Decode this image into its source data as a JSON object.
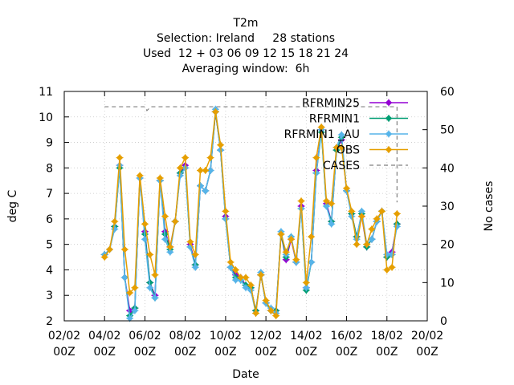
{
  "chart_data": {
    "type": "line",
    "title_lines": [
      "T2m",
      "Selection: Ireland     28 stations",
      "Used  12 + 03 06 09 12 15 18 21 24",
      "Averaging window:  6h"
    ],
    "xlabel": "Date",
    "ylabel": "deg C",
    "y2label": "No cases",
    "xlim": [
      0,
      18
    ],
    "ylim": [
      2,
      11
    ],
    "y2lim": [
      0,
      60
    ],
    "grid": true,
    "legend_position": "top-right",
    "x_ticks": [
      {
        "v": 0,
        "l1": "02/02",
        "l2": "00Z"
      },
      {
        "v": 2,
        "l1": "04/02",
        "l2": "00Z"
      },
      {
        "v": 4,
        "l1": "06/02",
        "l2": "00Z"
      },
      {
        "v": 6,
        "l1": "08/02",
        "l2": "00Z"
      },
      {
        "v": 8,
        "l1": "10/02",
        "l2": "00Z"
      },
      {
        "v": 10,
        "l1": "12/02",
        "l2": "00Z"
      },
      {
        "v": 12,
        "l1": "14/02",
        "l2": "00Z"
      },
      {
        "v": 14,
        "l1": "16/02",
        "l2": "00Z"
      },
      {
        "v": 16,
        "l1": "18/02",
        "l2": "00Z"
      },
      {
        "v": 18,
        "l1": "20/02",
        "l2": "00Z"
      }
    ],
    "y_ticks": [
      2,
      3,
      4,
      5,
      6,
      7,
      8,
      9,
      10,
      11
    ],
    "y2_ticks": [
      0,
      10,
      20,
      30,
      40,
      50,
      60
    ],
    "x": [
      2.0,
      2.25,
      2.5,
      2.75,
      3.0,
      3.25,
      3.5,
      3.75,
      4.0,
      4.25,
      4.5,
      4.75,
      5.0,
      5.25,
      5.5,
      5.75,
      6.0,
      6.25,
      6.5,
      6.75,
      7.0,
      7.25,
      7.5,
      7.75,
      8.0,
      8.25,
      8.5,
      8.75,
      9.0,
      9.25,
      9.5,
      9.75,
      10.0,
      10.25,
      10.5,
      10.75,
      11.0,
      11.25,
      11.5,
      11.75,
      12.0,
      12.25,
      12.5,
      12.75,
      13.0,
      13.25,
      13.5,
      13.75,
      14.0,
      14.25,
      14.5,
      14.75,
      15.0,
      15.25,
      15.5,
      15.75,
      16.0,
      16.25,
      16.5
    ],
    "series": [
      {
        "name": "RFRMIN25",
        "color": "#9400d3",
        "values": [
          4.6,
          4.8,
          5.7,
          8.1,
          3.7,
          2.4,
          2.5,
          7.6,
          5.5,
          3.5,
          3.0,
          7.5,
          5.5,
          4.9,
          5.9,
          7.8,
          8.1,
          5.0,
          4.2,
          7.3,
          7.1,
          7.9,
          10.2,
          8.7,
          6.1,
          4.1,
          3.8,
          3.7,
          3.4,
          3.3,
          2.4,
          3.8,
          2.7,
          2.4,
          2.4,
          5.4,
          4.4,
          5.2,
          4.3,
          6.5,
          3.3,
          4.3,
          7.9,
          9.5,
          6.6,
          5.9,
          8.7,
          9.1,
          7.1,
          6.2,
          5.3,
          6.1,
          4.9,
          5.2,
          5.9,
          6.3,
          4.5,
          4.7,
          5.8
        ]
      },
      {
        "name": "RFRMIN1",
        "color": "#009e73",
        "values": [
          4.6,
          4.8,
          5.7,
          8.0,
          3.7,
          2.2,
          2.5,
          7.6,
          5.4,
          3.5,
          2.9,
          7.5,
          5.4,
          4.8,
          5.9,
          7.8,
          8.0,
          4.9,
          4.2,
          7.3,
          7.1,
          7.9,
          10.2,
          8.7,
          6.0,
          4.1,
          3.7,
          3.6,
          3.4,
          3.3,
          2.4,
          3.8,
          2.7,
          2.4,
          2.4,
          5.4,
          4.5,
          5.3,
          4.3,
          6.4,
          3.2,
          4.3,
          7.8,
          9.4,
          6.5,
          5.9,
          8.7,
          9.2,
          7.1,
          6.2,
          5.3,
          6.2,
          4.9,
          5.2,
          5.9,
          6.3,
          4.5,
          4.6,
          5.8
        ]
      },
      {
        "name": "RFRMIN1 _AU",
        "color": "#56b4e9",
        "values": [
          4.6,
          4.8,
          5.6,
          8.1,
          3.7,
          2.1,
          2.4,
          7.6,
          5.2,
          3.3,
          2.9,
          7.5,
          5.2,
          4.7,
          5.9,
          7.7,
          8.0,
          4.9,
          4.1,
          7.3,
          7.1,
          7.9,
          10.3,
          8.7,
          6.0,
          4.1,
          3.6,
          3.6,
          3.3,
          3.2,
          2.3,
          3.9,
          2.7,
          2.5,
          2.3,
          5.5,
          4.6,
          5.3,
          4.3,
          6.4,
          3.3,
          4.3,
          7.8,
          9.5,
          6.5,
          5.8,
          8.8,
          9.3,
          7.1,
          6.1,
          5.2,
          6.3,
          5.0,
          5.2,
          5.9,
          6.3,
          4.6,
          4.6,
          5.7
        ]
      },
      {
        "name": "OBS",
        "color": "#e69f00",
        "values": [
          4.5,
          4.8,
          5.9,
          8.4,
          4.8,
          3.1,
          3.3,
          7.7,
          5.8,
          4.6,
          3.8,
          7.6,
          6.1,
          4.9,
          5.9,
          8.0,
          8.4,
          5.1,
          4.6,
          7.9,
          7.9,
          8.4,
          10.2,
          8.9,
          6.3,
          4.3,
          4.0,
          3.7,
          3.7,
          3.4,
          2.3,
          3.8,
          2.8,
          2.4,
          2.2,
          5.4,
          4.7,
          5.2,
          4.4,
          6.7,
          3.5,
          5.3,
          8.4,
          9.6,
          6.7,
          6.6,
          8.8,
          8.8,
          7.2,
          6.3,
          5.0,
          6.1,
          5.0,
          5.6,
          6.0,
          6.3,
          4.0,
          4.1,
          6.2
        ]
      },
      {
        "name": "CASES",
        "color": "#808080",
        "axis": "y2",
        "dashed": true,
        "x": [
          2.0,
          4.0,
          4.1,
          4.3,
          16.5,
          16.5
        ],
        "values": [
          56,
          56,
          55,
          56,
          56,
          31
        ]
      }
    ]
  }
}
